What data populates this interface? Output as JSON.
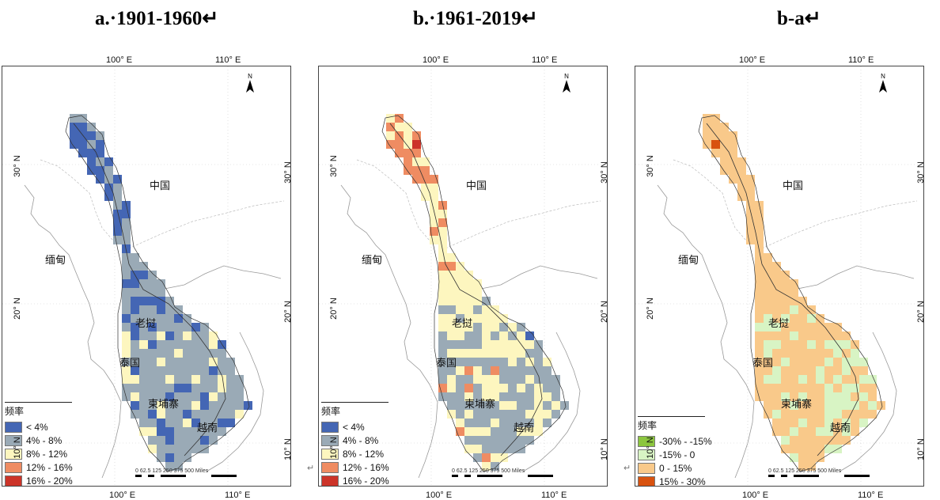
{
  "panels": [
    {
      "title": "a.·1901-1960↵",
      "legend_items": [
        {
          "label": "< 4%",
          "color": "#4466b4"
        },
        {
          "label": "4% - 8%",
          "color": "#9aaab6"
        },
        {
          "label": "8% - 12%",
          "color": "#fdf6bf"
        },
        {
          "label": "12% - 16%",
          "color": "#ef8c62"
        },
        {
          "label": "16% - 20%",
          "color": "#cc3429"
        }
      ]
    },
    {
      "title": "b.·1961-2019↵",
      "legend_items": [
        {
          "label": "< 4%",
          "color": "#4466b4"
        },
        {
          "label": "4% - 8%",
          "color": "#9aaab6"
        },
        {
          "label": "8% - 12%",
          "color": "#fdf6bf"
        },
        {
          "label": "12% - 16%",
          "color": "#ef8c62"
        },
        {
          "label": "16% - 20%",
          "color": "#cc3429"
        }
      ]
    },
    {
      "title": "b-a↵",
      "legend_items": [
        {
          "label": "-30% - -15%",
          "color": "#8cc63f"
        },
        {
          "label": "-15% - 0",
          "color": "#d8f4c4"
        },
        {
          "label": "0 - 15%",
          "color": "#f9c98a"
        },
        {
          "label": "15% - 30%",
          "color": "#d8520f"
        }
      ]
    }
  ],
  "map_labels": {
    "lon_100": "100° E",
    "lon_110": "110° E",
    "lat_30": "30° N",
    "lat_20": "20° N",
    "lat_10": "10° N",
    "china": "中国",
    "myanmar": "缅甸",
    "laos": "老挝",
    "thailand": "泰国",
    "cambodia": "柬埔寨",
    "vietnam": "越南",
    "legend_title": "频率",
    "north": "N",
    "scale_ticks": "0  62.5 125      250          375      500",
    "scale_unit": "Miles",
    "return_mark": "↵"
  },
  "colors": {
    "blue": "#4466b4",
    "gray": "#9aaab6",
    "yellow": "#fdf6bf",
    "orange": "#ef8c62",
    "red": "#cc3429",
    "green_dark": "#8cc63f",
    "green_light": "#d8f4c4",
    "peach": "#f9c98a",
    "dark_orange": "#d8520f"
  }
}
